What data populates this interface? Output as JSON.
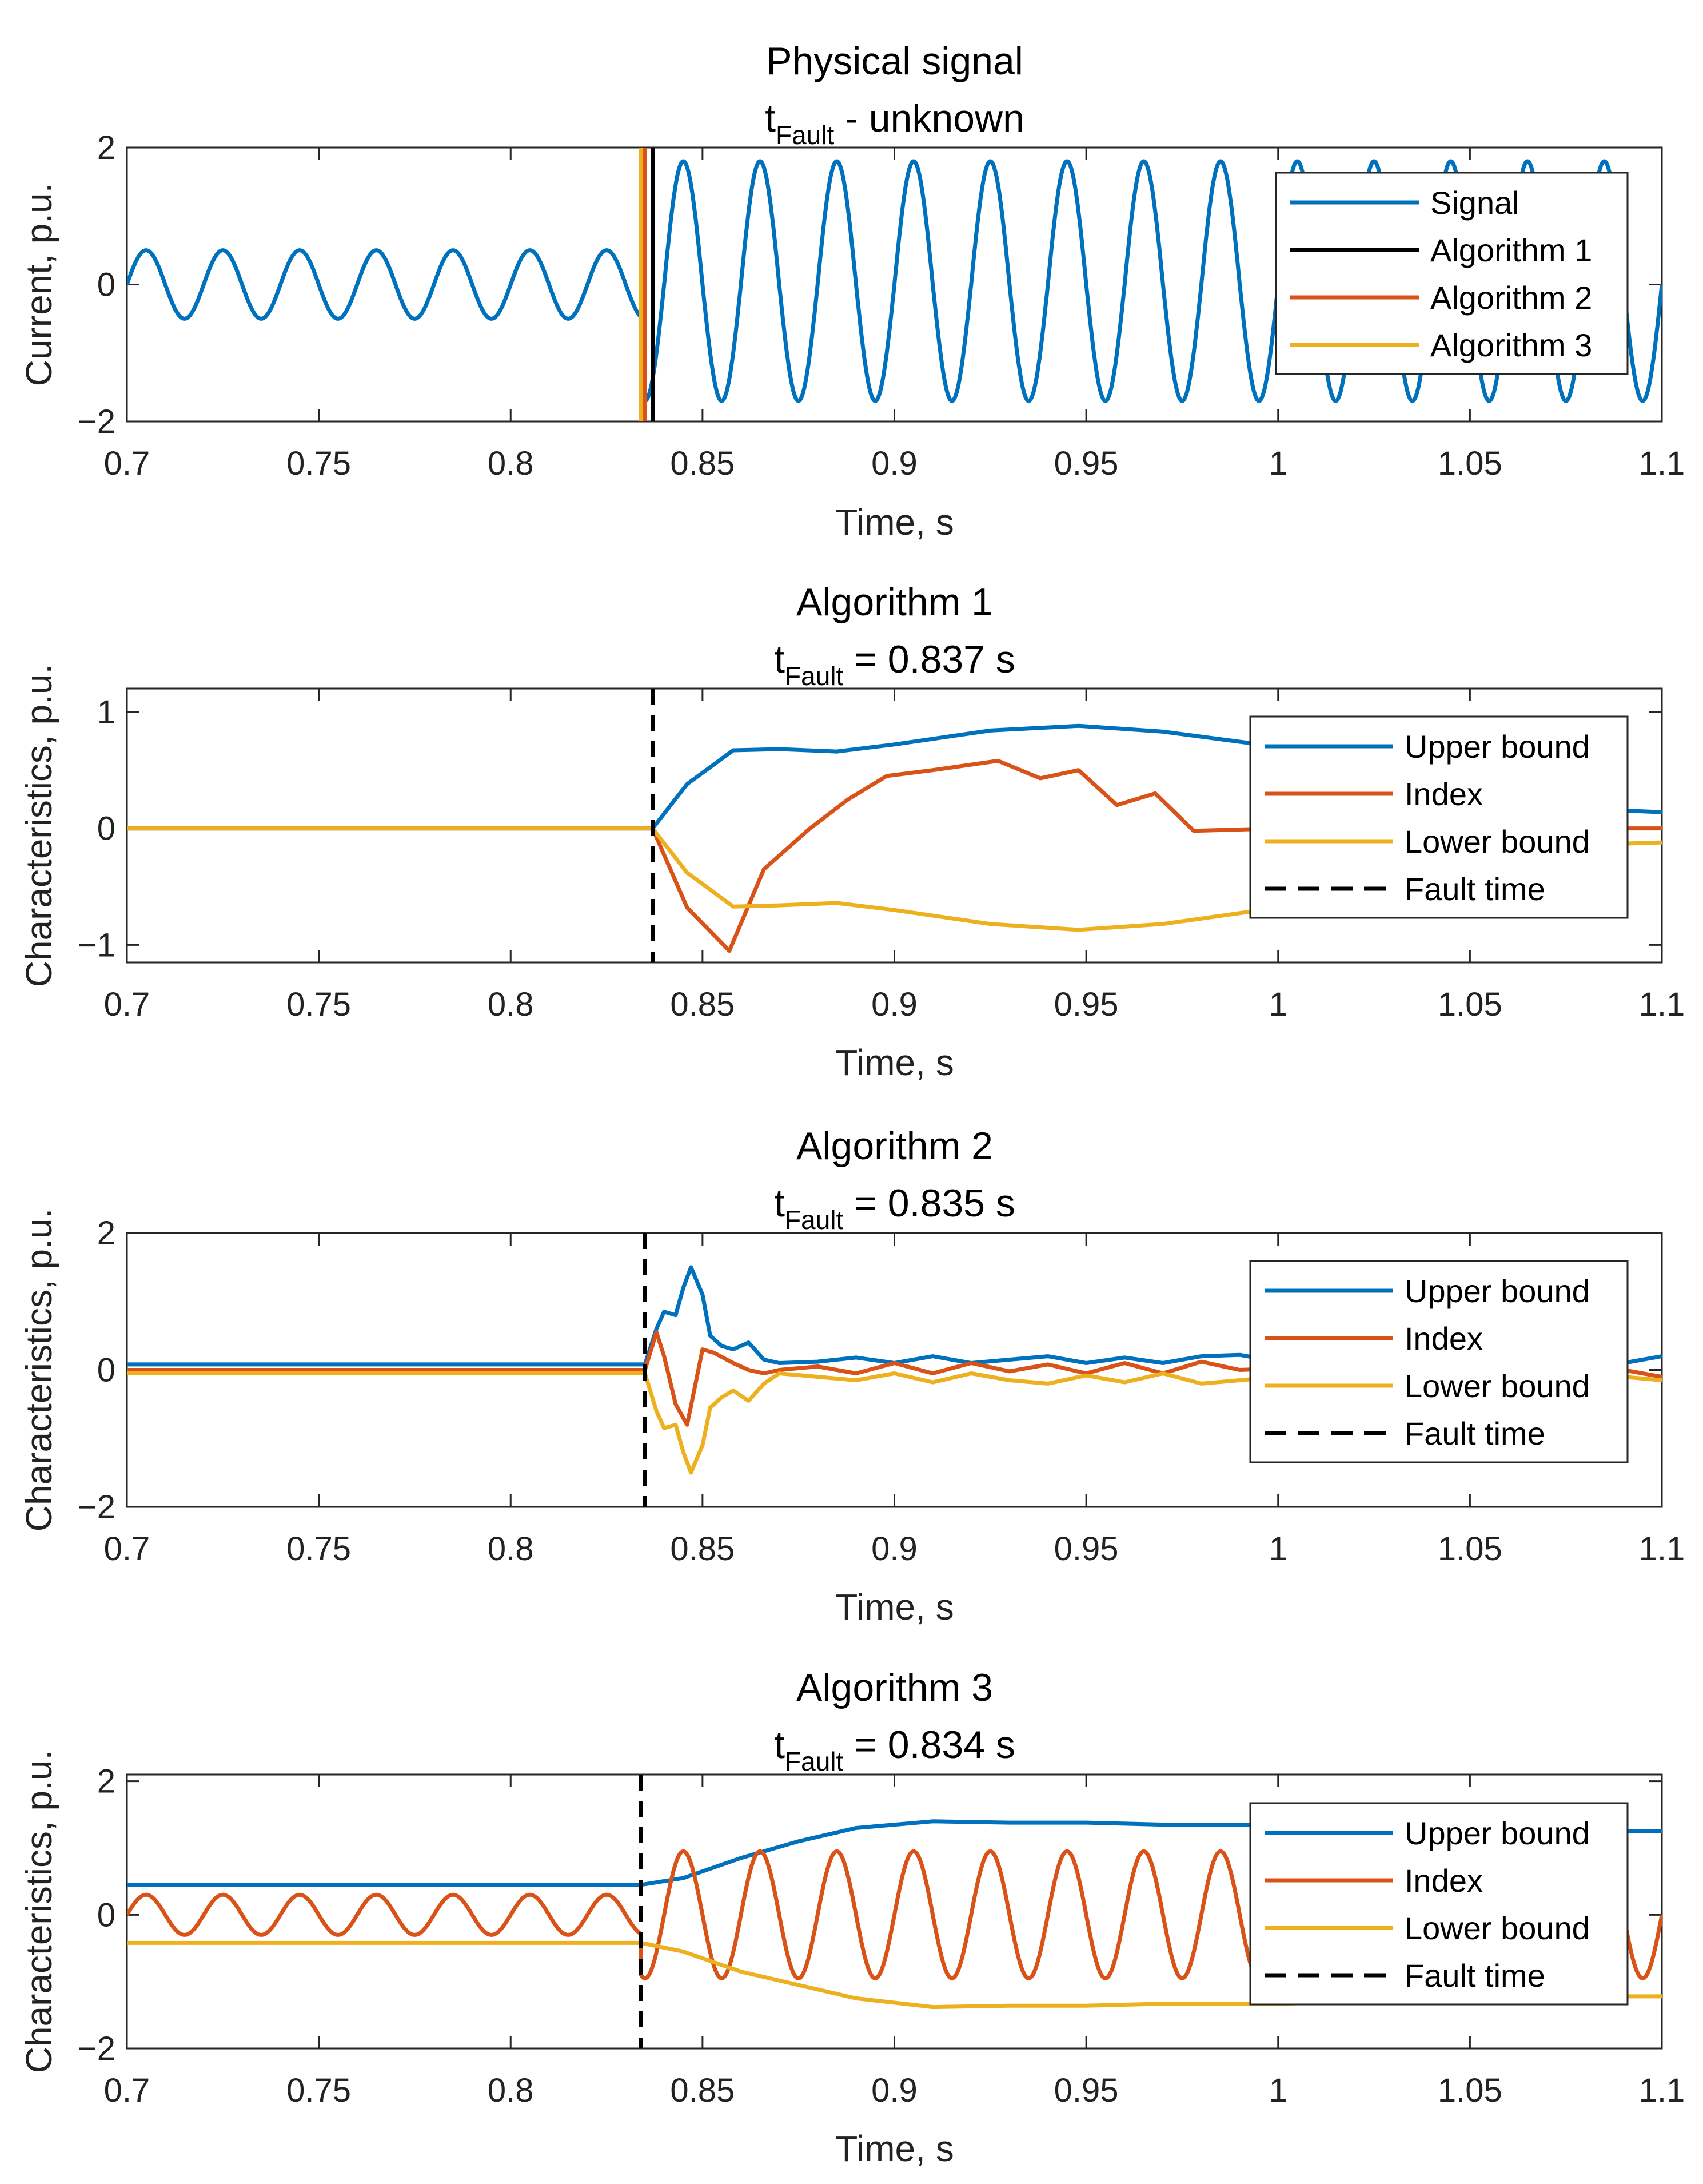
{
  "colors": {
    "blue": "#0072BD",
    "orange": "#D95319",
    "yellow": "#EDB120",
    "black": "#000000"
  },
  "chart_data": [
    {
      "type": "line",
      "title": "Physical signal",
      "title_line2": {
        "t": "t",
        "sub": "Fault",
        "rest": " - unknown"
      },
      "xlabel": "Time, s",
      "ylabel": "Current, p.u.",
      "xlim": [
        0.7,
        1.1
      ],
      "ylim": [
        -2,
        2
      ],
      "xticks": [
        "0.7",
        "0.75",
        "0.8",
        "0.85",
        "0.9",
        "0.95",
        "1",
        "1.05",
        "1.1"
      ],
      "yticks": [
        "−2",
        "0",
        "2"
      ],
      "legend_position": "top-right",
      "series": [
        {
          "name": "Signal",
          "color": "blue",
          "style": "solid",
          "kind": "sine",
          "pre_amp": 0.5,
          "post_amp_pos": 1.8,
          "post_amp_neg": -1.7,
          "freq": 50,
          "t_change": 0.834,
          "phase_deg": 0
        },
        {
          "name": "Algorithm 1",
          "color": "black",
          "style": "solid",
          "kind": "vline",
          "x": 0.837
        },
        {
          "name": "Algorithm 2",
          "color": "orange",
          "style": "solid",
          "kind": "vline",
          "x": 0.835
        },
        {
          "name": "Algorithm 3",
          "color": "yellow",
          "style": "solid",
          "kind": "vline",
          "x": 0.834
        }
      ]
    },
    {
      "type": "line",
      "title": "Algorithm 1",
      "title_line2": {
        "t": "t",
        "sub": "Fault",
        "rest": " = 0.837 s"
      },
      "xlabel": "Time, s",
      "ylabel": "Characteristics, p.u.",
      "xlim": [
        0.7,
        1.1
      ],
      "ylim": [
        -1.15,
        1.2
      ],
      "xticks": [
        "0.7",
        "0.75",
        "0.8",
        "0.85",
        "0.9",
        "0.95",
        "1",
        "1.05",
        "1.1"
      ],
      "yticks": [
        "−1",
        "0",
        "1"
      ],
      "ytick_values": [
        -1,
        0,
        1
      ],
      "legend_position": "top-right",
      "series": [
        {
          "name": "Upper bound",
          "color": "blue",
          "style": "solid",
          "kind": "points",
          "x": [
            0.7,
            0.837,
            0.846,
            0.858,
            0.87,
            0.885,
            0.9,
            0.925,
            0.948,
            0.97,
            1.0,
            1.03,
            1.07,
            1.1
          ],
          "y": [
            0,
            0,
            0.38,
            0.67,
            0.68,
            0.66,
            0.72,
            0.84,
            0.88,
            0.83,
            0.7,
            0.5,
            0.18,
            0.14
          ]
        },
        {
          "name": "Index",
          "color": "orange",
          "style": "solid",
          "kind": "points",
          "x": [
            0.7,
            0.837,
            0.846,
            0.857,
            0.866,
            0.878,
            0.888,
            0.898,
            0.91,
            0.927,
            0.938,
            0.948,
            0.958,
            0.968,
            0.978,
            1.0,
            1.03,
            1.07,
            1.1
          ],
          "y": [
            0,
            0,
            -0.68,
            -1.05,
            -0.35,
            0.0,
            0.25,
            0.45,
            0.5,
            0.58,
            0.43,
            0.5,
            0.2,
            0.3,
            -0.02,
            0.0,
            0.0,
            0.0,
            0.0
          ]
        },
        {
          "name": "Lower bound",
          "color": "yellow",
          "style": "solid",
          "kind": "points",
          "x": [
            0.7,
            0.837,
            0.846,
            0.858,
            0.87,
            0.885,
            0.9,
            0.925,
            0.948,
            0.97,
            1.0,
            1.03,
            1.07,
            1.1
          ],
          "y": [
            0,
            0,
            -0.38,
            -0.67,
            -0.66,
            -0.64,
            -0.7,
            -0.82,
            -0.87,
            -0.82,
            -0.68,
            -0.45,
            -0.15,
            -0.12
          ]
        },
        {
          "name": "Fault time",
          "color": "black",
          "style": "dashed",
          "kind": "vline",
          "x": 0.837
        }
      ]
    },
    {
      "type": "line",
      "title": "Algorithm 2",
      "title_line2": {
        "t": "t",
        "sub": "Fault",
        "rest": " = 0.835 s"
      },
      "xlabel": "Time, s",
      "ylabel": "Characteristics, p.u.",
      "xlim": [
        0.7,
        1.1
      ],
      "ylim": [
        -2,
        2
      ],
      "xticks": [
        "0.7",
        "0.75",
        "0.8",
        "0.85",
        "0.9",
        "0.95",
        "1",
        "1.05",
        "1.1"
      ],
      "yticks": [
        "−2",
        "0",
        "2"
      ],
      "ytick_values": [
        -2,
        0,
        2
      ],
      "legend_position": "top-right",
      "series": [
        {
          "name": "Upper bound",
          "color": "blue",
          "style": "solid",
          "kind": "points",
          "x": [
            0.7,
            0.835,
            0.838,
            0.84,
            0.843,
            0.845,
            0.847,
            0.85,
            0.852,
            0.855,
            0.858,
            0.862,
            0.866,
            0.87,
            0.88,
            0.89,
            0.9,
            0.91,
            0.92,
            0.93,
            0.94,
            0.95,
            0.96,
            0.97,
            0.98,
            0.99,
            1.0,
            1.02,
            1.04,
            1.06,
            1.08,
            1.09,
            1.1
          ],
          "y": [
            0.08,
            0.08,
            0.6,
            0.85,
            0.8,
            1.2,
            1.5,
            1.1,
            0.5,
            0.35,
            0.3,
            0.4,
            0.15,
            0.1,
            0.12,
            0.18,
            0.1,
            0.2,
            0.1,
            0.15,
            0.2,
            0.1,
            0.18,
            0.1,
            0.2,
            0.22,
            0.12,
            0.15,
            0.12,
            0.15,
            0.12,
            0.1,
            0.2
          ]
        },
        {
          "name": "Index",
          "color": "orange",
          "style": "solid",
          "kind": "points",
          "x": [
            0.7,
            0.835,
            0.838,
            0.84,
            0.843,
            0.846,
            0.85,
            0.853,
            0.858,
            0.862,
            0.866,
            0.87,
            0.88,
            0.89,
            0.9,
            0.91,
            0.92,
            0.93,
            0.94,
            0.95,
            0.96,
            0.97,
            0.98,
            0.99,
            1.0,
            1.03,
            1.06,
            1.09,
            1.1
          ],
          "y": [
            0.0,
            0.0,
            0.55,
            0.2,
            -0.5,
            -0.8,
            0.3,
            0.25,
            0.1,
            0.0,
            -0.05,
            0.0,
            0.05,
            -0.05,
            0.1,
            -0.05,
            0.1,
            -0.02,
            0.08,
            -0.05,
            0.1,
            -0.05,
            0.12,
            0.0,
            0.02,
            0.0,
            0.02,
            0.0,
            -0.1
          ]
        },
        {
          "name": "Lower bound",
          "color": "yellow",
          "style": "solid",
          "kind": "points",
          "x": [
            0.7,
            0.835,
            0.838,
            0.84,
            0.843,
            0.845,
            0.847,
            0.85,
            0.852,
            0.855,
            0.858,
            0.862,
            0.866,
            0.87,
            0.88,
            0.89,
            0.9,
            0.91,
            0.92,
            0.93,
            0.94,
            0.95,
            0.96,
            0.97,
            0.98,
            0.99,
            1.0,
            1.02,
            1.04,
            1.06,
            1.08,
            1.09,
            1.1
          ],
          "y": [
            -0.05,
            -0.05,
            -0.6,
            -0.85,
            -0.8,
            -1.2,
            -1.5,
            -1.1,
            -0.55,
            -0.4,
            -0.3,
            -0.45,
            -0.2,
            -0.05,
            -0.1,
            -0.15,
            -0.05,
            -0.18,
            -0.05,
            -0.15,
            -0.2,
            -0.08,
            -0.18,
            -0.05,
            -0.2,
            -0.15,
            -0.1,
            -0.15,
            -0.12,
            -0.15,
            -0.12,
            -0.1,
            -0.15
          ]
        },
        {
          "name": "Fault time",
          "color": "black",
          "style": "dashed",
          "kind": "vline",
          "x": 0.835
        }
      ]
    },
    {
      "type": "line",
      "title": "Algorithm 3",
      "title_line2": {
        "t": "t",
        "sub": "Fault",
        "rest": " = 0.834 s"
      },
      "xlabel": "Time, s",
      "ylabel": "Characteristics, p.u.",
      "xlim": [
        0.7,
        1.1
      ],
      "ylim": [
        -2,
        2.1
      ],
      "xticks": [
        "0.7",
        "0.75",
        "0.8",
        "0.85",
        "0.9",
        "0.95",
        "1",
        "1.05",
        "1.1"
      ],
      "yticks": [
        "−2",
        "0",
        "2"
      ],
      "ytick_values": [
        -2,
        0,
        2
      ],
      "legend_position": "top-right",
      "series": [
        {
          "name": "Upper bound",
          "color": "blue",
          "style": "solid",
          "kind": "points",
          "x": [
            0.7,
            0.834,
            0.845,
            0.86,
            0.875,
            0.89,
            0.91,
            0.93,
            0.95,
            0.97,
            1.0,
            1.03,
            1.06,
            1.09,
            1.1
          ],
          "y": [
            0.45,
            0.45,
            0.55,
            0.85,
            1.1,
            1.3,
            1.4,
            1.38,
            1.38,
            1.35,
            1.35,
            1.33,
            1.3,
            1.25,
            1.25
          ]
        },
        {
          "name": "Index",
          "color": "orange",
          "style": "sine",
          "kind": "sine",
          "pre_amp": 0.3,
          "post_amp_pos": 0.95,
          "post_amp_neg": -0.95,
          "freq": 50,
          "t_change": 0.834,
          "phase_deg": 0
        },
        {
          "name": "Lower bound",
          "color": "yellow",
          "style": "solid",
          "kind": "points",
          "x": [
            0.7,
            0.834,
            0.845,
            0.86,
            0.875,
            0.89,
            0.91,
            0.93,
            0.95,
            0.97,
            1.0,
            1.03,
            1.06,
            1.09,
            1.1
          ],
          "y": [
            -0.42,
            -0.42,
            -0.55,
            -0.85,
            -1.05,
            -1.25,
            -1.38,
            -1.36,
            -1.36,
            -1.33,
            -1.33,
            -1.3,
            -1.28,
            -1.22,
            -1.22
          ]
        },
        {
          "name": "Fault time",
          "color": "black",
          "style": "dashed",
          "kind": "vline",
          "x": 0.834
        }
      ]
    }
  ]
}
